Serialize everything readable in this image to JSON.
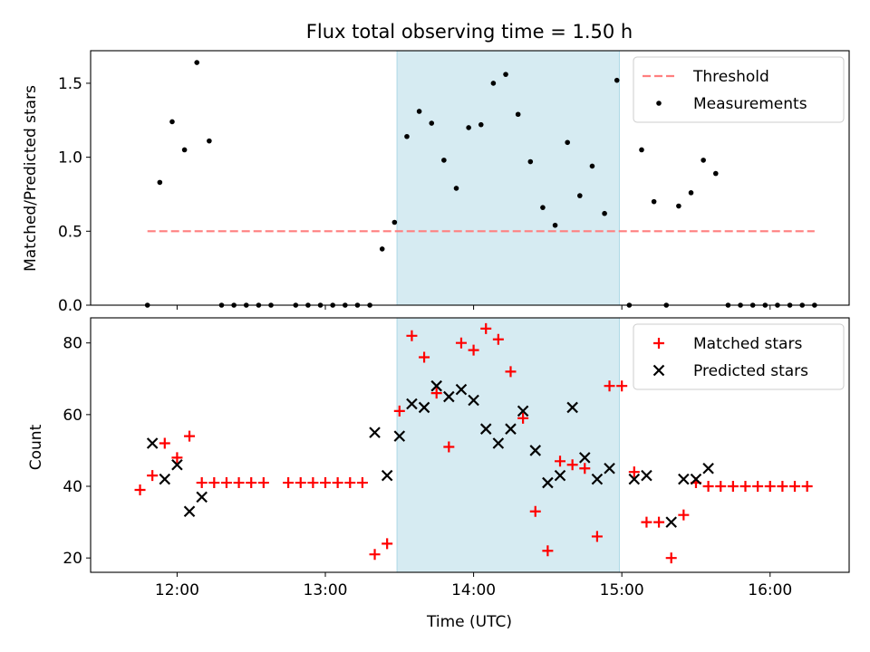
{
  "figure": {
    "title": "Flux total observing time = 1.50 h",
    "xlabel": "Time (UTC)"
  },
  "chart_data": [
    {
      "type": "scatter",
      "ylabel": "Matched/Predicted stars",
      "xlim": [
        "11:25",
        "16:32"
      ],
      "ylim": [
        0,
        1.72
      ],
      "yticks": [
        0.0,
        0.5,
        1.0,
        1.5
      ],
      "ytick_labels": [
        "0.0",
        "0.5",
        "1.0",
        "1.5"
      ],
      "shaded_span": {
        "x0": "13:29",
        "x1": "14:59",
        "color": "#add8e6"
      },
      "threshold": {
        "name": "Threshold",
        "y": 0.5,
        "x0": "11:48",
        "x1": "16:18",
        "color": "#ff7f7f"
      },
      "series": [
        {
          "name": "Measurements",
          "color": "#000000",
          "marker": "dot",
          "points": [
            [
              "11:48",
              0.0
            ],
            [
              "11:53",
              0.83
            ],
            [
              "11:58",
              1.24
            ],
            [
              "12:03",
              1.05
            ],
            [
              "12:08",
              1.64
            ],
            [
              "12:13",
              1.11
            ],
            [
              "12:18",
              0.0
            ],
            [
              "12:23",
              0.0
            ],
            [
              "12:28",
              0.0
            ],
            [
              "12:33",
              0.0
            ],
            [
              "12:38",
              0.0
            ],
            [
              "12:48",
              0.0
            ],
            [
              "12:53",
              0.0
            ],
            [
              "12:58",
              0.0
            ],
            [
              "13:03",
              0.0
            ],
            [
              "13:08",
              0.0
            ],
            [
              "13:13",
              0.0
            ],
            [
              "13:18",
              0.0
            ],
            [
              "13:23",
              0.38
            ],
            [
              "13:28",
              0.56
            ],
            [
              "13:33",
              1.14
            ],
            [
              "13:38",
              1.31
            ],
            [
              "13:43",
              1.23
            ],
            [
              "13:48",
              0.98
            ],
            [
              "13:53",
              0.79
            ],
            [
              "13:58",
              1.2
            ],
            [
              "14:03",
              1.22
            ],
            [
              "14:08",
              1.5
            ],
            [
              "14:13",
              1.56
            ],
            [
              "14:18",
              1.29
            ],
            [
              "14:23",
              0.97
            ],
            [
              "14:28",
              0.66
            ],
            [
              "14:33",
              0.54
            ],
            [
              "14:38",
              1.1
            ],
            [
              "14:43",
              0.74
            ],
            [
              "14:48",
              0.94
            ],
            [
              "14:53",
              0.62
            ],
            [
              "14:58",
              1.52
            ],
            [
              "15:03",
              0.0
            ],
            [
              "15:08",
              1.05
            ],
            [
              "15:13",
              0.7
            ],
            [
              "15:18",
              0.0
            ],
            [
              "15:23",
              0.67
            ],
            [
              "15:28",
              0.76
            ],
            [
              "15:33",
              0.98
            ],
            [
              "15:38",
              0.89
            ],
            [
              "15:43",
              0.0
            ],
            [
              "15:48",
              0.0
            ],
            [
              "15:53",
              0.0
            ],
            [
              "15:58",
              0.0
            ],
            [
              "16:03",
              0.0
            ],
            [
              "16:08",
              0.0
            ],
            [
              "16:13",
              0.0
            ],
            [
              "16:18",
              0.0
            ]
          ]
        }
      ],
      "legend": {
        "placement": "top-right",
        "entries": [
          "Threshold",
          "Measurements"
        ]
      }
    },
    {
      "type": "scatter",
      "ylabel": "Count",
      "xlim": [
        "11:25",
        "16:32"
      ],
      "ylim": [
        16,
        87
      ],
      "yticks": [
        20,
        40,
        60,
        80
      ],
      "ytick_labels": [
        "20",
        "40",
        "60",
        "80"
      ],
      "xticks": [
        "12:00",
        "13:00",
        "14:00",
        "15:00",
        "16:00"
      ],
      "xtick_labels": [
        "12:00",
        "13:00",
        "14:00",
        "15:00",
        "16:00"
      ],
      "shaded_span": {
        "x0": "13:29",
        "x1": "14:59",
        "color": "#add8e6"
      },
      "series": [
        {
          "name": "Matched stars",
          "color": "#ff0000",
          "marker": "plus",
          "points": [
            [
              "11:45",
              39
            ],
            [
              "11:50",
              43
            ],
            [
              "11:55",
              52
            ],
            [
              "12:00",
              48
            ],
            [
              "12:05",
              54
            ],
            [
              "12:10",
              41
            ],
            [
              "12:15",
              41
            ],
            [
              "12:20",
              41
            ],
            [
              "12:25",
              41
            ],
            [
              "12:30",
              41
            ],
            [
              "12:35",
              41
            ],
            [
              "12:45",
              41
            ],
            [
              "12:50",
              41
            ],
            [
              "12:55",
              41
            ],
            [
              "13:00",
              41
            ],
            [
              "13:05",
              41
            ],
            [
              "13:10",
              41
            ],
            [
              "13:15",
              41
            ],
            [
              "13:20",
              21
            ],
            [
              "13:25",
              24
            ],
            [
              "13:30",
              61
            ],
            [
              "13:35",
              82
            ],
            [
              "13:40",
              76
            ],
            [
              "13:45",
              66
            ],
            [
              "13:50",
              51
            ],
            [
              "13:55",
              80
            ],
            [
              "14:00",
              78
            ],
            [
              "14:05",
              84
            ],
            [
              "14:10",
              81
            ],
            [
              "14:15",
              72
            ],
            [
              "14:20",
              59
            ],
            [
              "14:25",
              33
            ],
            [
              "14:30",
              22
            ],
            [
              "14:35",
              47
            ],
            [
              "14:40",
              46
            ],
            [
              "14:45",
              45
            ],
            [
              "14:50",
              26
            ],
            [
              "14:55",
              68
            ],
            [
              "15:00",
              68
            ],
            [
              "15:05",
              44
            ],
            [
              "15:10",
              30
            ],
            [
              "15:15",
              30
            ],
            [
              "15:20",
              20
            ],
            [
              "15:25",
              32
            ],
            [
              "15:30",
              41
            ],
            [
              "15:35",
              40
            ],
            [
              "15:40",
              40
            ],
            [
              "15:45",
              40
            ],
            [
              "15:50",
              40
            ],
            [
              "15:55",
              40
            ],
            [
              "16:00",
              40
            ],
            [
              "16:05",
              40
            ],
            [
              "16:10",
              40
            ],
            [
              "16:15",
              40
            ]
          ]
        },
        {
          "name": "Predicted stars",
          "color": "#000000",
          "marker": "x",
          "points": [
            [
              "11:50",
              52
            ],
            [
              "11:55",
              42
            ],
            [
              "12:00",
              46
            ],
            [
              "12:05",
              33
            ],
            [
              "12:10",
              37
            ],
            [
              "13:20",
              55
            ],
            [
              "13:25",
              43
            ],
            [
              "13:30",
              54
            ],
            [
              "13:35",
              63
            ],
            [
              "13:40",
              62
            ],
            [
              "13:45",
              68
            ],
            [
              "13:50",
              65
            ],
            [
              "13:55",
              67
            ],
            [
              "14:00",
              64
            ],
            [
              "14:05",
              56
            ],
            [
              "14:10",
              52
            ],
            [
              "14:15",
              56
            ],
            [
              "14:20",
              61
            ],
            [
              "14:25",
              50
            ],
            [
              "14:30",
              41
            ],
            [
              "14:35",
              43
            ],
            [
              "14:40",
              62
            ],
            [
              "14:45",
              48
            ],
            [
              "14:50",
              42
            ],
            [
              "14:55",
              45
            ],
            [
              "15:05",
              42
            ],
            [
              "15:10",
              43
            ],
            [
              "15:20",
              30
            ],
            [
              "15:25",
              42
            ],
            [
              "15:30",
              42
            ],
            [
              "15:35",
              45
            ]
          ]
        }
      ],
      "legend": {
        "placement": "top-right",
        "entries": [
          "Matched stars",
          "Predicted stars"
        ]
      }
    }
  ]
}
